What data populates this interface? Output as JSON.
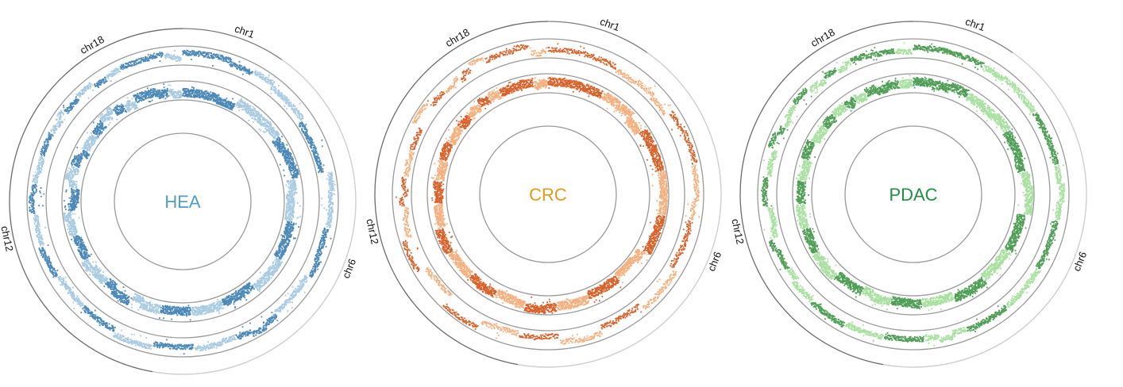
{
  "panels": [
    {
      "label": "HEA",
      "label_color": "#4f9cc8",
      "dark_color": "#4a88b8",
      "light_color": "#a9cbe2",
      "chromosome_labels": [
        "chr1",
        "chr6",
        "chr12",
        "chr18"
      ]
    },
    {
      "label": "CRC",
      "label_color": "#e09a1c",
      "dark_color": "#d9622a",
      "light_color": "#f5b07e",
      "chromosome_labels": [
        "chr1",
        "chr6",
        "chr12",
        "chr18"
      ]
    },
    {
      "label": "PDAC",
      "label_color": "#1f8f43",
      "dark_color": "#4e9e55",
      "light_color": "#a8e0a0",
      "chromosome_labels": [
        "chr1",
        "chr6",
        "chr12",
        "chr18"
      ]
    }
  ],
  "colors": {
    "ring_stroke": "#9a9a9a",
    "outer_stroke": "#555555"
  }
}
